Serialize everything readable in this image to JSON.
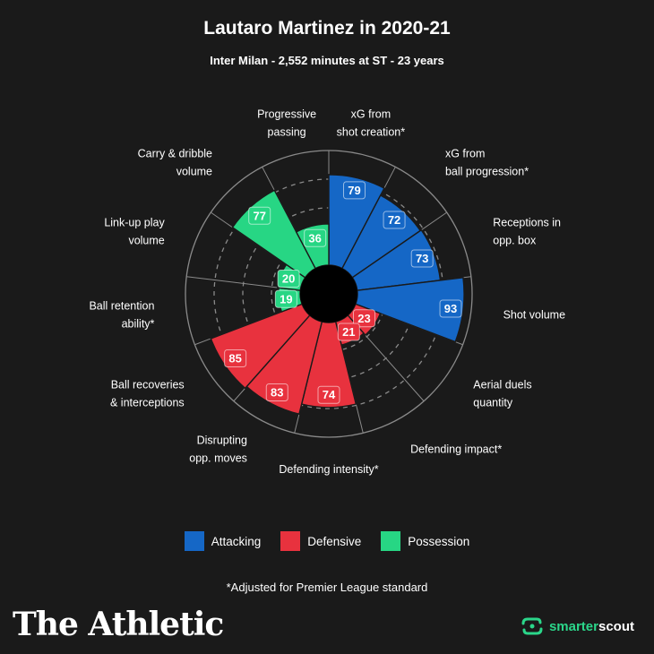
{
  "header": {
    "title": "Lautaro Martinez in 2020-21",
    "subtitle": "Inter Milan - 2,552 minutes at ST - 23 years"
  },
  "colors": {
    "attacking": "#1567c6",
    "defensive": "#e8323e",
    "possession": "#27d684",
    "background": "#1a1a1a"
  },
  "chart_data": {
    "type": "polar-bar",
    "title": "Lautaro Martinez in 2020-21",
    "subtitle": "Inter Milan - 2,552 minutes at ST - 23 years",
    "rlim": [
      0,
      100
    ],
    "categories": [
      {
        "label": "xG from\nshot creation*",
        "value": 79,
        "group": "Attacking"
      },
      {
        "label": "xG from\nball progression*",
        "value": 72,
        "group": "Attacking"
      },
      {
        "label": "Receptions in\nopp. box",
        "value": 73,
        "group": "Attacking"
      },
      {
        "label": "Shot volume",
        "value": 93,
        "group": "Attacking"
      },
      {
        "label": "Aerial duels\nquantity",
        "value": 23,
        "group": "Defensive"
      },
      {
        "label": "Defending impact*",
        "value": 21,
        "group": "Defensive"
      },
      {
        "label": "Defending intensity*",
        "value": 74,
        "group": "Defensive"
      },
      {
        "label": "Disrupting\nopp. moves",
        "value": 83,
        "group": "Defensive"
      },
      {
        "label": "Ball recoveries\n& interceptions",
        "value": 85,
        "group": "Defensive"
      },
      {
        "label": "Ball retention\nability*",
        "value": 19,
        "group": "Possession"
      },
      {
        "label": "Link-up play\nvolume",
        "value": 20,
        "group": "Possession"
      },
      {
        "label": "Carry & dribble\nvolume",
        "value": 77,
        "group": "Possession"
      },
      {
        "label": "Progressive\npassing",
        "value": 36,
        "group": "Possession"
      }
    ],
    "legend": [
      "Attacking",
      "Defensive",
      "Possession"
    ]
  },
  "legend": {
    "attacking": "Attacking",
    "defensive": "Defensive",
    "possession": "Possession"
  },
  "footnote": "*Adjusted for Premier League standard",
  "branding": {
    "publisher": "The Athletic",
    "partner_prefix": "smarter",
    "partner_suffix": "scout"
  }
}
